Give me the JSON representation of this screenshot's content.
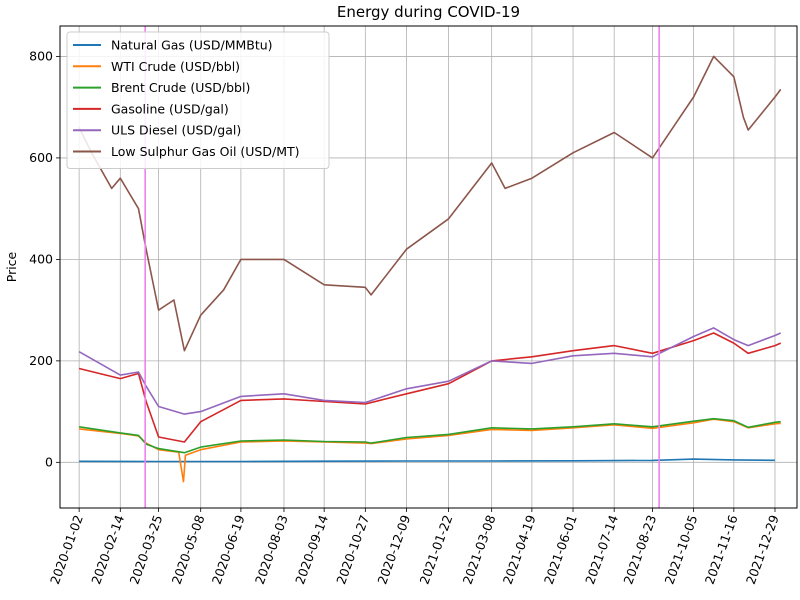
{
  "chart_data": {
    "type": "line",
    "title": "Energy during COVID-19",
    "xlabel": "",
    "ylabel": "Price",
    "xlim": [
      "2019-12-13",
      "2022-01-21"
    ],
    "ylim": [
      -90,
      860
    ],
    "yticks": [
      0,
      200,
      400,
      600,
      800
    ],
    "xticks": [
      "2020-01-02",
      "2020-02-14",
      "2020-03-25",
      "2020-05-08",
      "2020-06-19",
      "2020-08-03",
      "2020-09-14",
      "2020-10-27",
      "2020-12-09",
      "2021-01-22",
      "2021-03-08",
      "2021-04-19",
      "2021-06-01",
      "2021-07-14",
      "2021-08-23",
      "2021-10-05",
      "2021-11-16",
      "2021-12-29"
    ],
    "grid": true,
    "legend_position": "top-left",
    "vertical_markers": [
      {
        "date": "2020-03-11",
        "color": "#ee82ee"
      },
      {
        "date": "2021-08-30",
        "color": "#ee82ee"
      }
    ],
    "series": [
      {
        "name": "Natural Gas (USD/MMBtu)",
        "color": "#1f77b4",
        "points": [
          [
            "2020-01-02",
            2.1
          ],
          [
            "2020-03-25",
            1.6
          ],
          [
            "2020-06-19",
            1.7
          ],
          [
            "2020-09-14",
            2.3
          ],
          [
            "2020-12-09",
            2.6
          ],
          [
            "2021-03-08",
            2.7
          ],
          [
            "2021-06-01",
            3.1
          ],
          [
            "2021-08-23",
            3.9
          ],
          [
            "2021-10-05",
            6.3
          ],
          [
            "2021-11-16",
            4.9
          ],
          [
            "2021-12-29",
            4.0
          ]
        ]
      },
      {
        "name": "WTI Crude (USD/bbl)",
        "color": "#ff7f0e",
        "points": [
          [
            "2020-01-02",
            66
          ],
          [
            "2020-02-14",
            57
          ],
          [
            "2020-03-04",
            52
          ],
          [
            "2020-03-12",
            38
          ],
          [
            "2020-03-25",
            25
          ],
          [
            "2020-04-15",
            20
          ],
          [
            "2020-04-20",
            -38
          ],
          [
            "2020-04-22",
            14
          ],
          [
            "2020-05-08",
            25
          ],
          [
            "2020-06-19",
            40
          ],
          [
            "2020-08-03",
            42
          ],
          [
            "2020-09-14",
            40
          ],
          [
            "2020-10-27",
            38
          ],
          [
            "2020-11-02",
            37
          ],
          [
            "2020-12-09",
            46
          ],
          [
            "2021-01-22",
            53
          ],
          [
            "2021-03-08",
            65
          ],
          [
            "2021-04-19",
            63
          ],
          [
            "2021-06-01",
            68
          ],
          [
            "2021-07-14",
            74
          ],
          [
            "2021-08-23",
            67
          ],
          [
            "2021-10-05",
            78
          ],
          [
            "2021-10-26",
            85
          ],
          [
            "2021-11-16",
            80
          ],
          [
            "2021-12-01",
            68
          ],
          [
            "2021-12-29",
            76
          ],
          [
            "2022-01-04",
            77
          ]
        ]
      },
      {
        "name": "Brent Crude (USD/bbl)",
        "color": "#2ca02c",
        "points": [
          [
            "2020-01-02",
            70
          ],
          [
            "2020-02-14",
            58
          ],
          [
            "2020-03-04",
            53
          ],
          [
            "2020-03-12",
            36
          ],
          [
            "2020-03-25",
            27
          ],
          [
            "2020-04-21",
            19
          ],
          [
            "2020-05-08",
            30
          ],
          [
            "2020-06-19",
            42
          ],
          [
            "2020-08-03",
            44
          ],
          [
            "2020-09-14",
            41
          ],
          [
            "2020-10-27",
            40
          ],
          [
            "2020-11-02",
            38
          ],
          [
            "2020-12-09",
            49
          ],
          [
            "2021-01-22",
            55
          ],
          [
            "2021-03-08",
            68
          ],
          [
            "2021-04-19",
            66
          ],
          [
            "2021-06-01",
            70
          ],
          [
            "2021-07-14",
            76
          ],
          [
            "2021-08-23",
            70
          ],
          [
            "2021-10-05",
            81
          ],
          [
            "2021-10-26",
            86
          ],
          [
            "2021-11-16",
            82
          ],
          [
            "2021-12-01",
            69
          ],
          [
            "2021-12-29",
            79
          ],
          [
            "2022-01-04",
            80
          ]
        ]
      },
      {
        "name": "Gasoline (USD/gal)",
        "color": "#d62728",
        "points": [
          [
            "2020-01-02",
            185
          ],
          [
            "2020-02-14",
            165
          ],
          [
            "2020-03-04",
            175
          ],
          [
            "2020-03-12",
            120
          ],
          [
            "2020-03-25",
            50
          ],
          [
            "2020-04-21",
            40
          ],
          [
            "2020-05-08",
            80
          ],
          [
            "2020-06-19",
            122
          ],
          [
            "2020-08-03",
            125
          ],
          [
            "2020-09-14",
            120
          ],
          [
            "2020-10-27",
            115
          ],
          [
            "2020-12-09",
            135
          ],
          [
            "2021-01-22",
            155
          ],
          [
            "2021-03-08",
            200
          ],
          [
            "2021-04-19",
            208
          ],
          [
            "2021-06-01",
            220
          ],
          [
            "2021-07-14",
            230
          ],
          [
            "2021-08-23",
            215
          ],
          [
            "2021-10-05",
            240
          ],
          [
            "2021-10-26",
            255
          ],
          [
            "2021-11-16",
            235
          ],
          [
            "2021-12-01",
            215
          ],
          [
            "2021-12-29",
            230
          ],
          [
            "2022-01-04",
            235
          ]
        ]
      },
      {
        "name": "ULS Diesel (USD/gal)",
        "color": "#9467bd",
        "points": [
          [
            "2020-01-02",
            218
          ],
          [
            "2020-02-14",
            172
          ],
          [
            "2020-03-04",
            178
          ],
          [
            "2020-03-12",
            150
          ],
          [
            "2020-03-25",
            110
          ],
          [
            "2020-04-21",
            95
          ],
          [
            "2020-05-08",
            100
          ],
          [
            "2020-06-19",
            130
          ],
          [
            "2020-08-03",
            135
          ],
          [
            "2020-09-14",
            122
          ],
          [
            "2020-10-27",
            118
          ],
          [
            "2020-12-09",
            145
          ],
          [
            "2021-01-22",
            160
          ],
          [
            "2021-03-08",
            200
          ],
          [
            "2021-04-19",
            195
          ],
          [
            "2021-06-01",
            210
          ],
          [
            "2021-07-14",
            215
          ],
          [
            "2021-08-23",
            208
          ],
          [
            "2021-10-05",
            248
          ],
          [
            "2021-10-26",
            265
          ],
          [
            "2021-11-16",
            242
          ],
          [
            "2021-12-01",
            230
          ],
          [
            "2021-12-29",
            250
          ],
          [
            "2022-01-04",
            255
          ]
        ]
      },
      {
        "name": "Low Sulphur Gas Oil (USD/MT)",
        "color": "#8c564b",
        "points": [
          [
            "2020-01-02",
            660
          ],
          [
            "2020-01-15",
            610
          ],
          [
            "2020-02-05",
            540
          ],
          [
            "2020-02-14",
            560
          ],
          [
            "2020-03-04",
            500
          ],
          [
            "2020-03-12",
            420
          ],
          [
            "2020-03-25",
            300
          ],
          [
            "2020-04-10",
            320
          ],
          [
            "2020-04-21",
            220
          ],
          [
            "2020-05-08",
            290
          ],
          [
            "2020-06-01",
            340
          ],
          [
            "2020-06-19",
            400
          ],
          [
            "2020-08-03",
            400
          ],
          [
            "2020-09-14",
            350
          ],
          [
            "2020-10-27",
            345
          ],
          [
            "2020-11-02",
            330
          ],
          [
            "2020-12-09",
            420
          ],
          [
            "2021-01-22",
            480
          ],
          [
            "2021-03-08",
            590
          ],
          [
            "2021-03-22",
            540
          ],
          [
            "2021-04-19",
            560
          ],
          [
            "2021-06-01",
            610
          ],
          [
            "2021-07-14",
            650
          ],
          [
            "2021-08-23",
            600
          ],
          [
            "2021-10-05",
            720
          ],
          [
            "2021-10-26",
            800
          ],
          [
            "2021-11-16",
            760
          ],
          [
            "2021-11-26",
            680
          ],
          [
            "2021-12-01",
            655
          ],
          [
            "2021-12-29",
            720
          ],
          [
            "2022-01-04",
            735
          ]
        ]
      }
    ]
  }
}
